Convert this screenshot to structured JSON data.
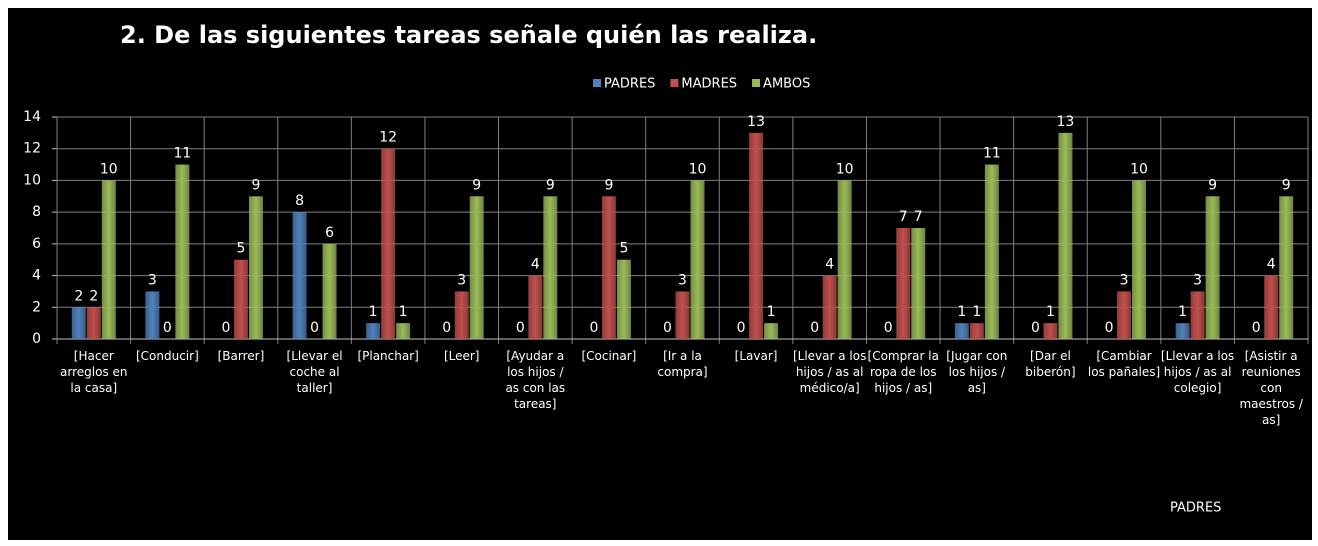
{
  "chart_data": {
    "type": "bar",
    "title": "2. De las siguientes tareas señale quién las realiza.",
    "categories": [
      "[Hacer arreglos en la casa]",
      "[Conducir]",
      "[Barrer]",
      "[Llevar el coche al taller]",
      "[Planchar]",
      "[Leer]",
      "[Ayudar a los hijos / as con las tareas]",
      "[Cocinar]",
      "[Ir a la compra]",
      "[Lavar]",
      "[Llevar a los hijos / as al médico/a]",
      "[Comprar la ropa de los hijos / as]",
      "[Jugar con los hijos / as]",
      "[Dar el biberón]",
      "[Cambiar los pañales]",
      "[Llevar a los hijos / as al colegio]",
      "[Asistir a reuniones con maestros / as]"
    ],
    "series": [
      {
        "name": "PADRES",
        "color": "#4f81bd",
        "values": [
          2,
          3,
          0,
          8,
          1,
          0,
          0,
          0,
          0,
          0,
          0,
          0,
          1,
          0,
          0,
          1,
          0
        ]
      },
      {
        "name": "MADRES",
        "color": "#c0504d",
        "values": [
          2,
          0,
          5,
          0,
          12,
          3,
          4,
          9,
          3,
          13,
          4,
          7,
          1,
          1,
          3,
          3,
          4
        ]
      },
      {
        "name": "AMBOS",
        "color": "#9bbb59",
        "values": [
          10,
          11,
          9,
          6,
          1,
          9,
          9,
          5,
          10,
          1,
          10,
          7,
          11,
          13,
          10,
          9,
          9
        ]
      }
    ],
    "ylim": [
      0,
      14
    ],
    "yticks": [
      0,
      2,
      4,
      6,
      8,
      10,
      12,
      14
    ],
    "grid": true,
    "legend": "top",
    "annotation": "PADRES"
  }
}
